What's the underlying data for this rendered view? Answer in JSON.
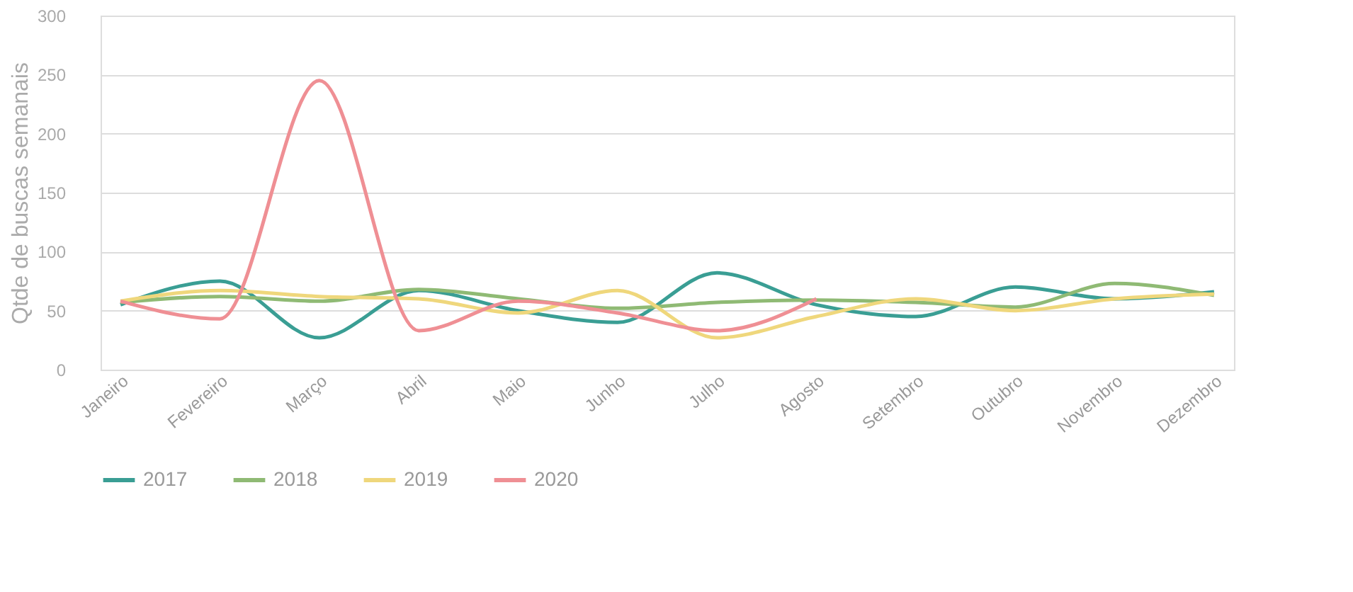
{
  "chart_data": {
    "type": "line",
    "ylabel": "Qtde de buscas semanais",
    "categories": [
      "Janeiro",
      "Fevereiro",
      "Março",
      "Abril",
      "Maio",
      "Junho",
      "Julho",
      "Agosto",
      "Setembro",
      "Outubro",
      "Novembro",
      "Dezembro"
    ],
    "series": [
      {
        "name": "2017",
        "color": "#3a9e94",
        "values": [
          55,
          75,
          27,
          67,
          50,
          40,
          82,
          55,
          45,
          70,
          60,
          66
        ]
      },
      {
        "name": "2018",
        "color": "#8fba74",
        "values": [
          57,
          62,
          58,
          68,
          60,
          52,
          57,
          59,
          57,
          53,
          73,
          63
        ]
      },
      {
        "name": "2019",
        "color": "#efd77c",
        "values": [
          58,
          67,
          62,
          60,
          48,
          67,
          27,
          45,
          60,
          50,
          60,
          64
        ]
      },
      {
        "name": "2020",
        "color": "#ef8f94",
        "values": [
          58,
          43,
          245,
          33,
          58,
          48,
          33,
          60,
          null,
          null,
          null,
          null
        ]
      }
    ],
    "ylim": [
      0,
      300
    ],
    "yticks": [
      0,
      50,
      100,
      150,
      200,
      250,
      300
    ],
    "grid": "y",
    "legend": "bottom",
    "line_style": "solid",
    "marker": "none"
  }
}
